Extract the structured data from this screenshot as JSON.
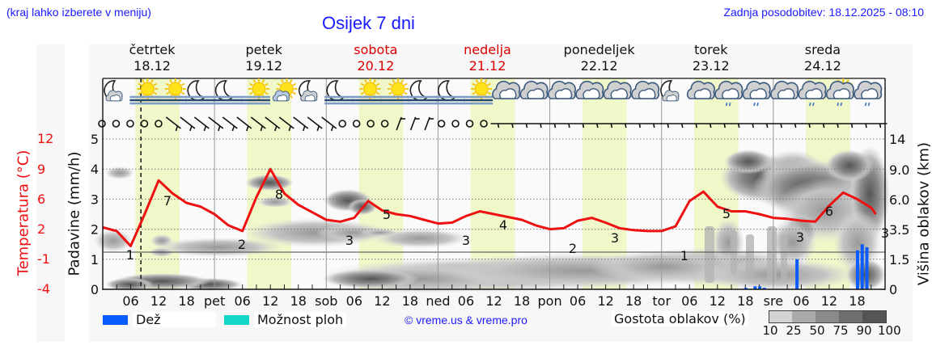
{
  "header": {
    "hint": "(kraj lahko izberete v meniju)",
    "title": "Osijek 7 dni",
    "updated": "Zadnja posodobitev: 18.12.2025 - 08:10"
  },
  "days": [
    {
      "name": "četrtek",
      "date": "18.12",
      "weekend": false
    },
    {
      "name": "petek",
      "date": "19.12",
      "weekend": false
    },
    {
      "name": "sobota",
      "date": "20.12",
      "weekend": true
    },
    {
      "name": "nedelja",
      "date": "21.12",
      "weekend": true
    },
    {
      "name": "ponedeljek",
      "date": "22.12",
      "weekend": false
    },
    {
      "name": "torek",
      "date": "23.12",
      "weekend": false
    },
    {
      "name": "sreda",
      "date": "24.12",
      "weekend": false
    }
  ],
  "axes": {
    "left_temp_label": "Temperatura (°C)",
    "left_temp_ticks": [
      "12",
      "9",
      "6",
      "2",
      "-1",
      "-4"
    ],
    "left_precip_label": "Padavine (mm/h)",
    "left_precip_ticks": [
      "5",
      "4",
      "3",
      "2",
      "1",
      "0"
    ],
    "right_label": "Višina oblakov (km)",
    "right_ticks": [
      "14",
      "9.0",
      "6.0",
      "3.5",
      "1.5",
      "0"
    ],
    "x_ticks": [
      "06",
      "12",
      "18",
      "pet",
      "06",
      "12",
      "18",
      "sob",
      "06",
      "12",
      "18",
      "ned",
      "06",
      "12",
      "18",
      "pon",
      "06",
      "12",
      "18",
      "tor",
      "06",
      "12",
      "18",
      "sre",
      "06",
      "12",
      "18"
    ]
  },
  "legend": {
    "rain": "Dež",
    "showers": "Možnost ploh",
    "copyright": "© vreme.us & vreme.pro",
    "cloud_density": "Gostota oblakov (%)",
    "cloud_scale": [
      "10",
      "25",
      "50",
      "75",
      "90",
      "100"
    ],
    "rain_color": "#0a5cff",
    "showers_color": "#12d6c6"
  },
  "chart_data": {
    "type": "line",
    "title": "Osijek 7 dni",
    "xlabel": "",
    "ylabel": "Temperatura (°C)",
    "ylim": [
      -4,
      12
    ],
    "y2label": "Padavine (mm/h)",
    "y2lim": [
      0,
      5
    ],
    "y3label": "Višina oblakov (km)",
    "categories": [
      "čet 18.12",
      "pet 19.12",
      "sob 20.12",
      "ned 21.12",
      "pon 22.12",
      "tor 23.12",
      "sre 24.12"
    ],
    "series": [
      {
        "name": "Temperatura (°C)",
        "color": "#ee1111",
        "x_hours": [
          0,
          3,
          6,
          9,
          12,
          15,
          18,
          21,
          24,
          27,
          30,
          33,
          36,
          39,
          42,
          45,
          48,
          51,
          54,
          57,
          60,
          63,
          66,
          69,
          72,
          75,
          78,
          81,
          84,
          87,
          90,
          93,
          96,
          99,
          102,
          105,
          108,
          111,
          114,
          117,
          120,
          123,
          126,
          129,
          132,
          135,
          138,
          141,
          144,
          147,
          150,
          153,
          156,
          159,
          162,
          165,
          166
        ],
        "values": [
          2.6,
          2.2,
          0.6,
          4.0,
          7.6,
          6.2,
          5.2,
          4.8,
          4.0,
          2.8,
          2.2,
          5.8,
          8.8,
          6.2,
          5.0,
          4.2,
          3.4,
          3.2,
          3.6,
          5.4,
          4.4,
          4.0,
          3.8,
          3.4,
          3.0,
          3.1,
          3.8,
          4.3,
          4.0,
          3.7,
          3.4,
          2.8,
          2.4,
          2.5,
          3.3,
          3.6,
          3.1,
          2.5,
          2.3,
          2.2,
          2.2,
          2.7,
          5.4,
          6.4,
          4.8,
          4.3,
          4.3,
          4.0,
          3.6,
          3.5,
          3.3,
          3.2,
          4.9,
          6.3,
          5.6,
          4.7,
          4.0
        ]
      },
      {
        "name": "Dež (mm/h)",
        "color": "#0a5cff",
        "bars": [
          {
            "hour": 138,
            "value": 0.05
          },
          {
            "hour": 140,
            "value": 0.1
          },
          {
            "hour": 141,
            "value": 0.1
          },
          {
            "hour": 142,
            "value": 0.05
          },
          {
            "hour": 149,
            "value": 1.0
          },
          {
            "hour": 162,
            "value": 1.3
          },
          {
            "hour": 163,
            "value": 1.5
          },
          {
            "hour": 164,
            "value": 1.4
          }
        ]
      }
    ],
    "temperature_labels": [
      {
        "hour": 5,
        "value": "1"
      },
      {
        "hour": 14,
        "value": "7"
      },
      {
        "hour": 29,
        "value": "2"
      },
      {
        "hour": 38,
        "value": "8"
      },
      {
        "hour": 53,
        "value": "3"
      },
      {
        "hour": 62,
        "value": "5"
      },
      {
        "hour": 77,
        "value": "3"
      },
      {
        "hour": 86,
        "value": "4"
      },
      {
        "hour": 101,
        "value": "2"
      },
      {
        "hour": 110,
        "value": "3"
      },
      {
        "hour": 125,
        "value": "1"
      },
      {
        "hour": 134,
        "value": "5"
      },
      {
        "hour": 149,
        "value": "3"
      },
      {
        "hour": 158,
        "value": "6"
      },
      {
        "hour": 167,
        "value": "3"
      }
    ],
    "now_marker_hour": 8.2,
    "daylight_bands_hours": [
      [
        7,
        16.5
      ],
      [
        31,
        40.5
      ],
      [
        55,
        64.5
      ],
      [
        79,
        88.5
      ],
      [
        103,
        112.5
      ],
      [
        127,
        136.5
      ],
      [
        151,
        160.5
      ]
    ],
    "grid": true,
    "legend_position": "bottom"
  },
  "icons": {
    "weather": [
      "moon-cloud",
      "sun-fog",
      "sun-fog",
      "moon-fog",
      "moon-fog",
      "sun-fog",
      "sun-cloud",
      "moon-cloud",
      "moon-fog",
      "sun-fog",
      "sun-fog",
      "moon-fog",
      "moon-fog",
      "sun-fog",
      "cloud",
      "cloud",
      "cloud",
      "cloud",
      "cloud",
      "cloud",
      "moon-cloud",
      "cloud",
      "cloud-drizzle",
      "cloud-drizzle",
      "cloud",
      "cloud-drizzle",
      "sun-cloud-drizzle",
      "cloud-drizzle"
    ]
  }
}
